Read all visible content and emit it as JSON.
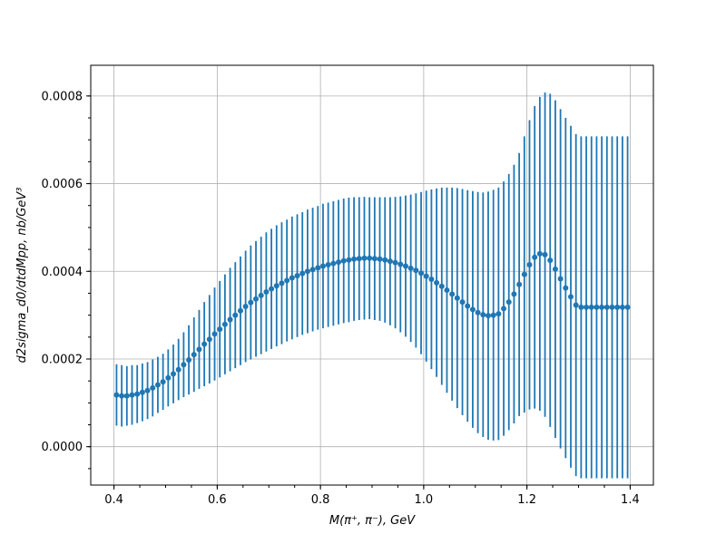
{
  "chart_data": {
    "type": "scatter",
    "title": "",
    "xlabel": "M(π⁺, π⁻), GeV",
    "ylabel": "d2sigma_d0/dtdMpp, nb/GeV³",
    "xlim": [
      0.355,
      1.445
    ],
    "ylim": [
      -8.75e-05,
      0.00087
    ],
    "xticks": [
      0.4,
      0.6,
      0.8,
      1.0,
      1.2,
      1.4
    ],
    "xtick_labels": [
      "0.4",
      "0.6",
      "0.8",
      "1.0",
      "1.2",
      "1.4"
    ],
    "yticks": [
      0.0,
      0.0002,
      0.0004,
      0.0006,
      0.0008
    ],
    "ytick_labels": [
      "0.0000",
      "0.0002",
      "0.0004",
      "0.0006",
      "0.0008"
    ],
    "grid": true,
    "marker_color": "#1f77b4",
    "series": [
      {
        "x": [
          0.405,
          0.415,
          0.425,
          0.435,
          0.445,
          0.455,
          0.465,
          0.475,
          0.485,
          0.495,
          0.505,
          0.515,
          0.525,
          0.535,
          0.545,
          0.555,
          0.565,
          0.575,
          0.585,
          0.595,
          0.605,
          0.615,
          0.625,
          0.635,
          0.645,
          0.655,
          0.665,
          0.675,
          0.685,
          0.695,
          0.705,
          0.715,
          0.725,
          0.735,
          0.745,
          0.755,
          0.765,
          0.775,
          0.785,
          0.795,
          0.805,
          0.815,
          0.825,
          0.835,
          0.845,
          0.855,
          0.865,
          0.875,
          0.885,
          0.895,
          0.905,
          0.915,
          0.925,
          0.935,
          0.945,
          0.955,
          0.965,
          0.975,
          0.985,
          0.995,
          1.005,
          1.015,
          1.025,
          1.035,
          1.045,
          1.055,
          1.065,
          1.075,
          1.085,
          1.095,
          1.105,
          1.115,
          1.125,
          1.135,
          1.145,
          1.155,
          1.165,
          1.175,
          1.185,
          1.195,
          1.205,
          1.215,
          1.225,
          1.235,
          1.245,
          1.255,
          1.265,
          1.275,
          1.285,
          1.295,
          1.305,
          1.315,
          1.325,
          1.335,
          1.345,
          1.355,
          1.365,
          1.375,
          1.385,
          1.395
        ],
        "y": [
          0.000118,
          0.000116,
          0.000116,
          0.000118,
          0.00012,
          0.000124,
          0.000128,
          0.000134,
          0.000141,
          0.000148,
          0.000157,
          0.000166,
          0.000176,
          0.000187,
          0.000198,
          0.00021,
          0.000222,
          0.000234,
          0.000245,
          0.000257,
          0.000268,
          0.000279,
          0.00029,
          0.0003,
          0.00031,
          0.00032,
          0.000329,
          0.000337,
          0.000345,
          0.000353,
          0.00036,
          0.000367,
          0.000373,
          0.000379,
          0.000385,
          0.00039,
          0.000395,
          0.0004,
          0.000404,
          0.000408,
          0.000412,
          0.000415,
          0.000418,
          0.000421,
          0.000424,
          0.000426,
          0.000428,
          0.000429,
          0.00043,
          0.00043,
          0.000429,
          0.000428,
          0.000426,
          0.000423,
          0.00042,
          0.000416,
          0.000412,
          0.000407,
          0.000402,
          0.000396,
          0.000389,
          0.000382,
          0.000374,
          0.000366,
          0.000357,
          0.000348,
          0.000339,
          0.00033,
          0.000321,
          0.000313,
          0.000306,
          0.000301,
          0.000299,
          0.0003,
          0.000303,
          0.000315,
          0.00033,
          0.000348,
          0.00037,
          0.000393,
          0.000415,
          0.000432,
          0.00044,
          0.000438,
          0.000425,
          0.000405,
          0.000383,
          0.000362,
          0.000342,
          0.000323,
          0.000318,
          0.000318,
          0.000318,
          0.000318,
          0.000318,
          0.000318,
          0.000318,
          0.000318,
          0.000318,
          0.000318
        ],
        "yerr": [
          7e-05,
          7e-05,
          6.8e-05,
          6.8e-05,
          6.6e-05,
          6.6e-05,
          6.5e-05,
          6.5e-05,
          6.4e-05,
          6.4e-05,
          6.5e-05,
          6.7e-05,
          7e-05,
          7.4e-05,
          7.9e-05,
          8.5e-05,
          9e-05,
          9.6e-05,
          0.000101,
          0.000106,
          0.00011,
          0.000114,
          0.000118,
          0.000121,
          0.000124,
          0.000127,
          0.00013,
          0.000132,
          0.000134,
          0.000136,
          0.000137,
          0.000138,
          0.000139,
          0.000139,
          0.00014,
          0.00014,
          0.00014,
          0.000141,
          0.000141,
          0.000141,
          0.000142,
          0.000142,
          0.000142,
          0.000142,
          0.000142,
          0.000142,
          0.000141,
          0.00014,
          0.00014,
          0.000139,
          0.00014,
          0.000141,
          0.000143,
          0.000146,
          0.00015,
          0.000155,
          0.000161,
          0.000168,
          0.000176,
          0.000185,
          0.000195,
          0.000205,
          0.000215,
          0.000225,
          0.000234,
          0.000243,
          0.000251,
          0.000258,
          0.000264,
          0.00027,
          0.000275,
          0.000279,
          0.000283,
          0.000286,
          0.000288,
          0.00029,
          0.000292,
          0.000295,
          0.0003,
          0.000315,
          0.00033,
          0.000345,
          0.000358,
          0.00037,
          0.00038,
          0.000385,
          0.000387,
          0.000388,
          0.00039,
          0.00039,
          0.00039,
          0.00039,
          0.00039,
          0.00039,
          0.00039,
          0.00039,
          0.00039,
          0.00039,
          0.00039,
          0.00039
        ]
      }
    ]
  }
}
